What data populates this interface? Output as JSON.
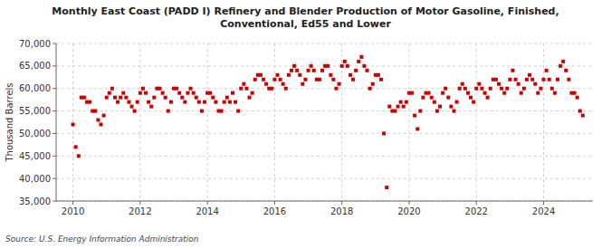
{
  "chart_data": {
    "type": "scatter",
    "title": "Monthly East Coast (PADD I) Refinery and Blender Production of Motor Gasoline, Finished,\nConventional, Ed55 and Lower",
    "ylabel": "Thousand Barrels",
    "source": "Source: U.S. Energy Information Administration",
    "color": "#cc0000",
    "marker": "square",
    "grid": true,
    "xlim": [
      2009.5,
      2025.4666666666667
    ],
    "xticks": [
      2010,
      2012,
      2014,
      2016,
      2018,
      2020,
      2022,
      2024
    ],
    "ylim": [
      35000,
      70000
    ],
    "yticks": [
      {
        "value": 35000,
        "label": "35,000"
      },
      {
        "value": 40000,
        "label": "40,000"
      },
      {
        "value": 45000,
        "label": "45,000"
      },
      {
        "value": 50000,
        "label": "50,000"
      },
      {
        "value": 55000,
        "label": "55,000"
      },
      {
        "value": 60000,
        "label": "60,000"
      },
      {
        "value": 65000,
        "label": "65,000"
      },
      {
        "value": 70000,
        "label": "70,000"
      }
    ],
    "x": [
      2010,
      2010.0833333333333,
      2010.1666666666667,
      2010.25,
      2010.3333333333333,
      2010.4166666666667,
      2010.5,
      2010.5833333333333,
      2010.6666666666667,
      2010.75,
      2010.8333333333333,
      2010.9166666666667,
      2011,
      2011.0833333333333,
      2011.1666666666667,
      2011.25,
      2011.3333333333333,
      2011.4166666666667,
      2011.5,
      2011.5833333333333,
      2011.6666666666667,
      2011.75,
      2011.8333333333333,
      2011.9166666666667,
      2012,
      2012.0833333333333,
      2012.1666666666667,
      2012.25,
      2012.3333333333333,
      2012.4166666666667,
      2012.5,
      2012.5833333333333,
      2012.6666666666667,
      2012.75,
      2012.8333333333333,
      2012.9166666666667,
      2013,
      2013.0833333333333,
      2013.1666666666667,
      2013.25,
      2013.3333333333333,
      2013.4166666666667,
      2013.5,
      2013.5833333333333,
      2013.6666666666667,
      2013.75,
      2013.8333333333333,
      2013.9166666666667,
      2014,
      2014.0833333333333,
      2014.1666666666667,
      2014.25,
      2014.3333333333333,
      2014.4166666666667,
      2014.5,
      2014.5833333333333,
      2014.6666666666667,
      2014.75,
      2014.8333333333333,
      2014.9166666666667,
      2015,
      2015.0833333333333,
      2015.1666666666667,
      2015.25,
      2015.3333333333333,
      2015.4166666666667,
      2015.5,
      2015.5833333333333,
      2015.6666666666667,
      2015.75,
      2015.8333333333333,
      2015.9166666666667,
      2016,
      2016.0833333333333,
      2016.1666666666667,
      2016.25,
      2016.3333333333333,
      2016.4166666666667,
      2016.5,
      2016.5833333333333,
      2016.6666666666667,
      2016.75,
      2016.8333333333333,
      2016.9166666666667,
      2017,
      2017.0833333333333,
      2017.1666666666667,
      2017.25,
      2017.3333333333333,
      2017.4166666666667,
      2017.5,
      2017.5833333333333,
      2017.6666666666667,
      2017.75,
      2017.8333333333333,
      2017.9166666666667,
      2018,
      2018.0833333333333,
      2018.1666666666667,
      2018.25,
      2018.3333333333333,
      2018.4166666666667,
      2018.5,
      2018.5833333333333,
      2018.6666666666667,
      2018.75,
      2018.8333333333333,
      2018.9166666666667,
      2019,
      2019.0833333333333,
      2019.1666666666667,
      2019.25,
      2019.3333333333333,
      2019.4166666666667,
      2019.5,
      2019.5833333333333,
      2019.6666666666667,
      2019.75,
      2019.8333333333333,
      2019.9166666666667,
      2020,
      2020.0833333333333,
      2020.1666666666667,
      2020.25,
      2020.3333333333333,
      2020.4166666666667,
      2020.5,
      2020.5833333333333,
      2020.6666666666667,
      2020.75,
      2020.8333333333333,
      2020.9166666666667,
      2021,
      2021.0833333333333,
      2021.1666666666667,
      2021.25,
      2021.3333333333333,
      2021.4166666666667,
      2021.5,
      2021.5833333333333,
      2021.6666666666667,
      2021.75,
      2021.8333333333333,
      2021.9166666666667,
      2022,
      2022.0833333333333,
      2022.1666666666667,
      2022.25,
      2022.3333333333333,
      2022.4166666666667,
      2022.5,
      2022.5833333333333,
      2022.6666666666667,
      2022.75,
      2022.8333333333333,
      2022.9166666666667,
      2023,
      2023.0833333333333,
      2023.1666666666667,
      2023.25,
      2023.3333333333333,
      2023.4166666666667,
      2023.5,
      2023.5833333333333,
      2023.6666666666667,
      2023.75,
      2023.8333333333333,
      2023.9166666666667,
      2024,
      2024.0833333333333,
      2024.1666666666667,
      2024.25,
      2024.3333333333333,
      2024.4166666666667,
      2024.5,
      2024.5833333333333,
      2024.6666666666667,
      2024.75,
      2024.8333333333333,
      2024.9166666666667,
      2025,
      2025.0833333333333,
      2025.1666666666667
    ],
    "values": [
      52000,
      47000,
      45000,
      58000,
      58000,
      57000,
      57000,
      55000,
      55000,
      53000,
      52000,
      54000,
      58000,
      59000,
      60000,
      58000,
      57000,
      58000,
      59000,
      58000,
      57000,
      56000,
      55000,
      57000,
      59000,
      60000,
      59000,
      57000,
      56000,
      58000,
      60000,
      60000,
      59000,
      58000,
      55000,
      57000,
      60000,
      60000,
      59000,
      58000,
      57000,
      59000,
      60000,
      59000,
      58000,
      57000,
      55000,
      57000,
      59000,
      59000,
      58000,
      57000,
      55000,
      55000,
      57000,
      58000,
      57000,
      59000,
      57000,
      55000,
      60000,
      61000,
      60000,
      58000,
      59000,
      62000,
      63000,
      63000,
      62000,
      61000,
      60000,
      60000,
      62000,
      63000,
      62000,
      61000,
      60000,
      63000,
      64000,
      65000,
      64000,
      63000,
      61000,
      62000,
      64000,
      65000,
      64000,
      62000,
      62000,
      64000,
      65000,
      65000,
      63000,
      62000,
      60000,
      61000,
      65000,
      66000,
      65000,
      63000,
      62000,
      64000,
      66000,
      67000,
      65000,
      64000,
      60000,
      61000,
      63000,
      63000,
      62000,
      50000,
      38000,
      56000,
      55000,
      55000,
      56000,
      57000,
      56000,
      57000,
      59000,
      59000,
      54000,
      51000,
      55000,
      58000,
      59000,
      59000,
      58000,
      57000,
      55000,
      56000,
      59000,
      60000,
      58000,
      56000,
      55000,
      57000,
      60000,
      61000,
      60000,
      59000,
      58000,
      57000,
      60000,
      61000,
      60000,
      59000,
      58000,
      60000,
      62000,
      62000,
      61000,
      60000,
      59000,
      60000,
      62000,
      64000,
      62000,
      61000,
      59000,
      60000,
      62000,
      63000,
      62000,
      61000,
      59000,
      60000,
      62000,
      64000,
      62000,
      60000,
      59000,
      62000,
      65000,
      66000,
      64000,
      62000,
      59000,
      59000,
      58000,
      55000,
      54000
    ]
  }
}
